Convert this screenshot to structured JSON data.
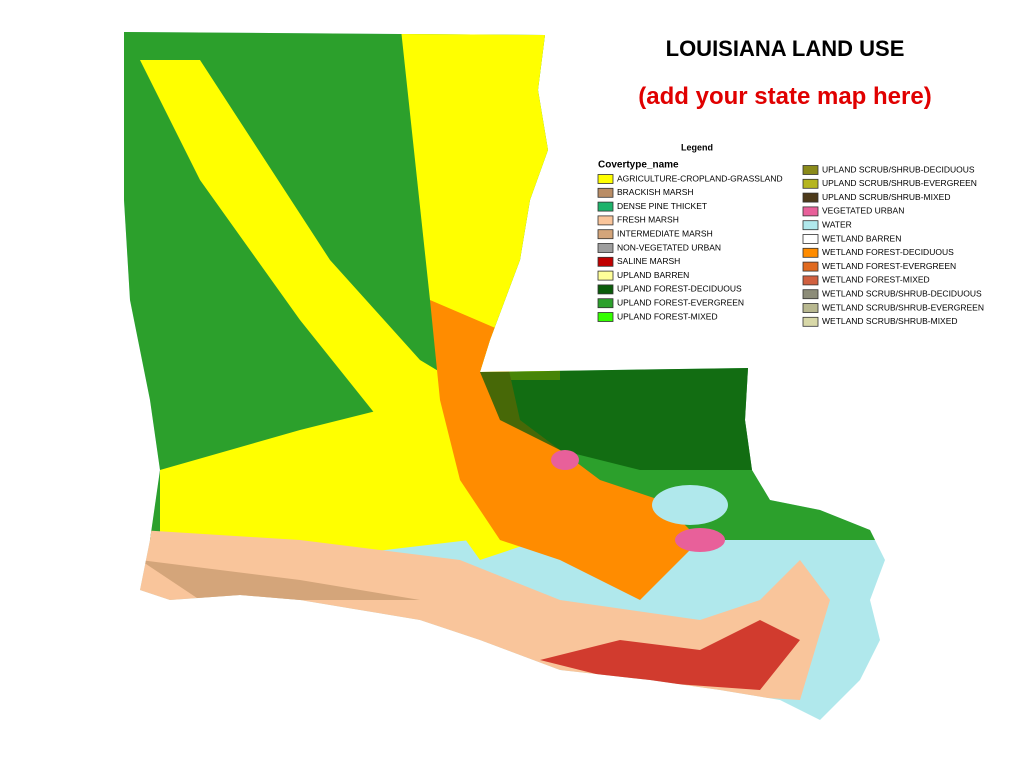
{
  "header": {
    "title": "LOUISIANA LAND USE",
    "subtitle": "(add your state map here)"
  },
  "legend": {
    "title": "Legend",
    "heading": "Covertype_name",
    "left_column": [
      {
        "label": "AGRICULTURE-CROPLAND-GRASSLAND",
        "color": "#ffff00"
      },
      {
        "label": "BRACKISH MARSH",
        "color": "#b98d66"
      },
      {
        "label": "DENSE PINE THICKET",
        "color": "#1db36b"
      },
      {
        "label": "FRESH MARSH",
        "color": "#f9c59b"
      },
      {
        "label": "INTERMEDIATE MARSH",
        "color": "#d4a57a"
      },
      {
        "label": "NON-VEGETATED URBAN",
        "color": "#9e9e9e"
      },
      {
        "label": "SALINE MARSH",
        "color": "#c00000"
      },
      {
        "label": "UPLAND BARREN",
        "color": "#ffff99"
      },
      {
        "label": "UPLAND FOREST-DECIDUOUS",
        "color": "#0a5c0a"
      },
      {
        "label": "UPLAND FOREST-EVERGREEN",
        "color": "#2ca02c"
      },
      {
        "label": "UPLAND FOREST-MIXED",
        "color": "#33ff00"
      }
    ],
    "right_column": [
      {
        "label": "UPLAND SCRUB/SHRUB-DECIDUOUS",
        "color": "#8a8a1a"
      },
      {
        "label": "UPLAND SCRUB/SHRUB-EVERGREEN",
        "color": "#b5b520"
      },
      {
        "label": "UPLAND SCRUB/SHRUB-MIXED",
        "color": "#4d3a1a"
      },
      {
        "label": "VEGETATED URBAN",
        "color": "#e8609a"
      },
      {
        "label": "WATER",
        "color": "#b0e8ec"
      },
      {
        "label": "WETLAND BARREN",
        "color": "#ffffff"
      },
      {
        "label": "WETLAND FOREST-DECIDUOUS",
        "color": "#ff8c00"
      },
      {
        "label": "WETLAND FOREST-EVERGREEN",
        "color": "#e06a20"
      },
      {
        "label": "WETLAND FOREST-MIXED",
        "color": "#d06040"
      },
      {
        "label": "WETLAND SCRUB/SHRUB-DECIDUOUS",
        "color": "#8c8c78"
      },
      {
        "label": "WETLAND SCRUB/SHRUB-EVERGREEN",
        "color": "#b8b890"
      },
      {
        "label": "WETLAND SCRUB/SHRUB-MIXED",
        "color": "#d8d8a8"
      }
    ]
  }
}
